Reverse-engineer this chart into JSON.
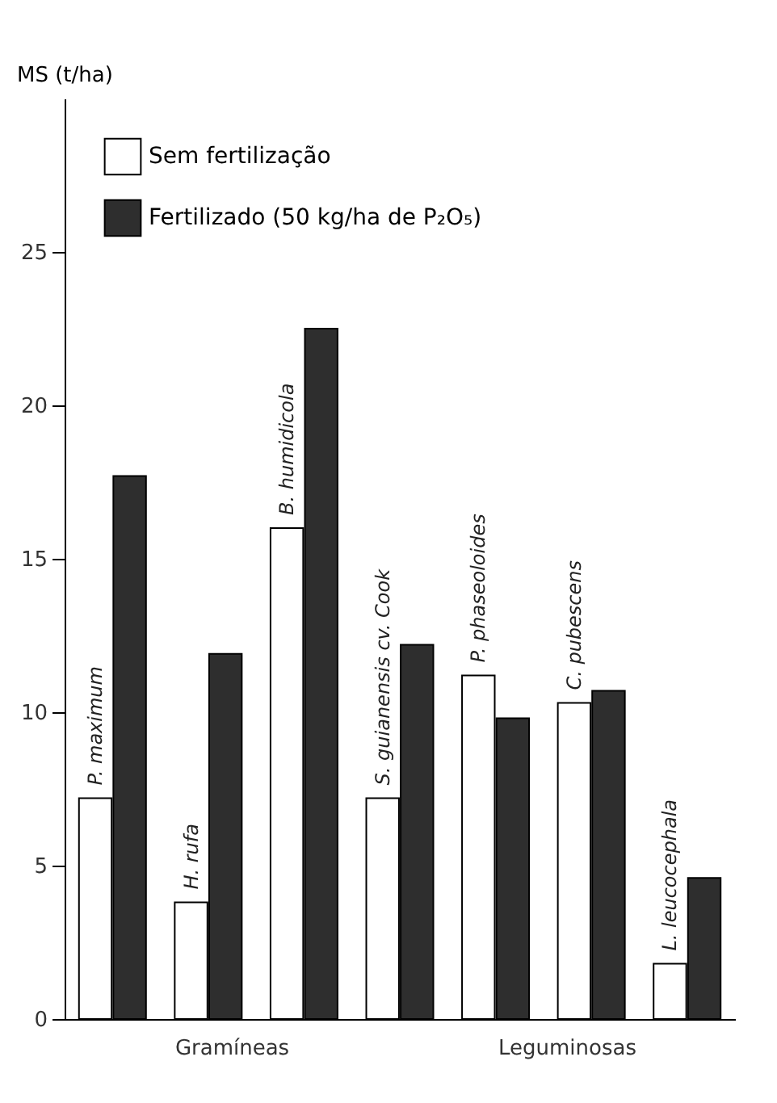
{
  "chart_data": {
    "type": "bar",
    "ylabel": "MS (t/ha)",
    "categories": [
      "P. maximum",
      "H. rufa",
      "B. humidicola",
      "S. guianensis cv. Cook",
      "P. phaseoloides",
      "C. pubescens",
      "L. leucocephala"
    ],
    "series": [
      {
        "name": "Sem fertilização",
        "color": "#ffffff",
        "values": [
          7.2,
          3.8,
          16.0,
          7.2,
          11.2,
          10.3,
          1.8
        ]
      },
      {
        "name": "Fertilizado (50 kg/ha de P₂O₅)",
        "color": "#2e2e2e",
        "values": [
          17.7,
          11.9,
          22.5,
          12.2,
          9.8,
          10.7,
          4.6
        ]
      }
    ],
    "ylim": [
      0,
      30
    ],
    "yticks": [
      0,
      5,
      10,
      15,
      20,
      25
    ],
    "legend": "top left",
    "grid": false,
    "annotations": [
      "Gramíneas",
      "Leguminosas"
    ]
  }
}
